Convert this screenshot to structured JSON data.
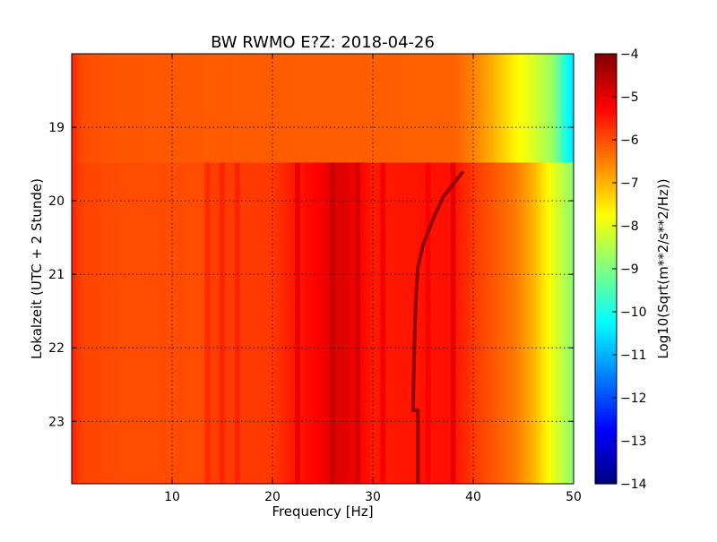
{
  "chart_data": {
    "type": "heatmap",
    "title": "BW RWMO E?Z: 2018-04-26",
    "xlabel": "Frequency [Hz]",
    "ylabel": "Lokalzeit (UTC + 2 Stunde)",
    "xlim": [
      0,
      50
    ],
    "ylim": [
      18.0,
      23.85
    ],
    "y_inverted": true,
    "x_ticks": [
      10,
      20,
      30,
      40,
      50
    ],
    "y_ticks": [
      19,
      20,
      21,
      22,
      23
    ],
    "grid": true,
    "colormap": "jet",
    "colorbar": {
      "label": "Log10(Sqrt(m**2/s**2/Hz))",
      "min": -14,
      "max": -4,
      "ticks": [
        -4,
        -5,
        -6,
        -7,
        -8,
        -9,
        -10,
        -11,
        -12,
        -13,
        -14
      ]
    },
    "segments": [
      {
        "time_range": [
          18.0,
          19.48
        ],
        "profile": [
          [
            0,
            -5.6
          ],
          [
            1,
            -6.0
          ],
          [
            5,
            -6.1
          ],
          [
            20,
            -6.15
          ],
          [
            38,
            -6.2
          ],
          [
            40,
            -6.5
          ],
          [
            42,
            -7.0
          ],
          [
            44,
            -7.6
          ],
          [
            46,
            -8.1
          ],
          [
            48,
            -8.8
          ],
          [
            49.5,
            -10.3
          ],
          [
            50,
            -10.5
          ]
        ]
      },
      {
        "time_range": [
          19.48,
          23.85
        ],
        "profile": [
          [
            0,
            -5.6
          ],
          [
            1,
            -5.9
          ],
          [
            5,
            -6.0
          ],
          [
            13,
            -6.0
          ],
          [
            14,
            -5.85
          ],
          [
            20,
            -5.8
          ],
          [
            22,
            -5.5
          ],
          [
            24,
            -5.3
          ],
          [
            26,
            -5.0
          ],
          [
            27,
            -4.9
          ],
          [
            28,
            -5.1
          ],
          [
            30,
            -5.5
          ],
          [
            34,
            -5.45
          ],
          [
            38,
            -5.4
          ],
          [
            40,
            -5.8
          ],
          [
            42,
            -6.1
          ],
          [
            44,
            -6.4
          ],
          [
            46,
            -7.0
          ],
          [
            48,
            -8.0
          ],
          [
            50,
            -8.9
          ]
        ],
        "stripes": [
          {
            "x": 13.5,
            "delta": 0.25
          },
          {
            "x": 15,
            "delta": 0.25
          },
          {
            "x": 16.5,
            "delta": 0.25
          },
          {
            "x": 22.5,
            "delta": 0.4
          },
          {
            "x": 26,
            "delta": 0.3
          },
          {
            "x": 28.5,
            "delta": 0.4
          },
          {
            "x": 31,
            "delta": 0.3
          },
          {
            "x": 35.5,
            "delta": 0.2
          },
          {
            "x": 38,
            "delta": 0.4
          }
        ]
      }
    ],
    "tone_line": {
      "value": -4.2,
      "points": [
        [
          39.0,
          19.6
        ],
        [
          37.0,
          19.95
        ],
        [
          36.0,
          20.25
        ],
        [
          35.0,
          20.6
        ],
        [
          34.5,
          20.9
        ],
        [
          34.3,
          21.3
        ],
        [
          34.2,
          21.7
        ],
        [
          34.1,
          22.2
        ],
        [
          34.0,
          22.85
        ],
        [
          34.5,
          22.85
        ],
        [
          34.5,
          23.85
        ]
      ]
    }
  }
}
